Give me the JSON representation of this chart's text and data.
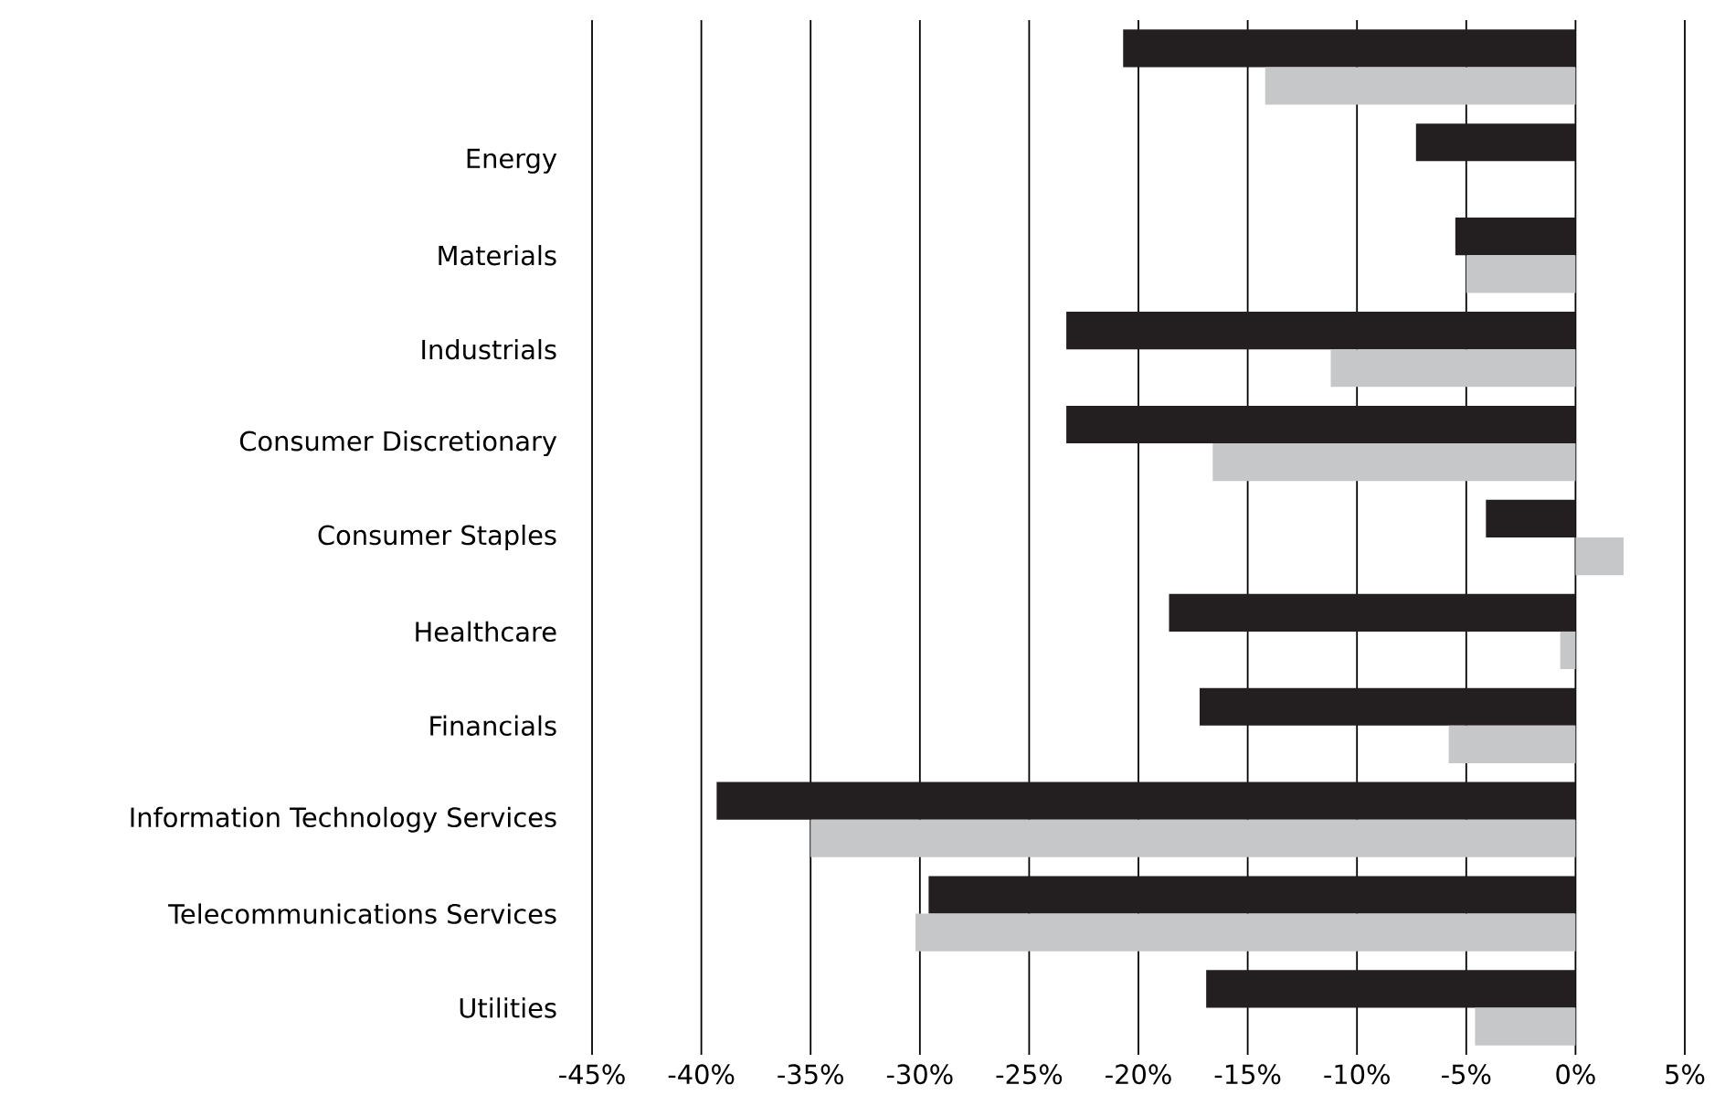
{
  "chart_data": {
    "type": "bar",
    "orientation": "horizontal",
    "grid": "x",
    "categories": [
      null,
      "Energy",
      "Materials",
      "Industrials",
      "Consumer Discretionary",
      "Consumer Staples",
      "Healthcare",
      "Financials",
      "Information Technology Services",
      "Telecommunications Services",
      "Utilities"
    ],
    "series": [
      {
        "color": "#231f20",
        "values": [
          -20.7,
          -7.3,
          -5.5,
          -23.3,
          -23.3,
          -4.1,
          -18.6,
          -17.2,
          -39.3,
          -29.6,
          -16.9
        ]
      },
      {
        "color": "#c6c7c8",
        "values": [
          -14.2,
          null,
          -5.0,
          -11.2,
          -16.6,
          2.2,
          -0.7,
          -5.8,
          -35.0,
          -30.2,
          -4.6
        ]
      }
    ],
    "xlim": [
      -45,
      5
    ],
    "xticks": [
      {
        "value": -45,
        "label": "-45%"
      },
      {
        "value": -40,
        "label": "-40%"
      },
      {
        "value": -35,
        "label": "-35%"
      },
      {
        "value": -30,
        "label": "-30%"
      },
      {
        "value": -25,
        "label": "-25%"
      },
      {
        "value": -20,
        "label": "-20%"
      },
      {
        "value": -15,
        "label": "-15%"
      },
      {
        "value": -10,
        "label": "-10%"
      },
      {
        "value": -5,
        "label": "-5%"
      },
      {
        "value": 0,
        "label": "0%"
      },
      {
        "value": 5,
        "label": "5%"
      }
    ]
  }
}
